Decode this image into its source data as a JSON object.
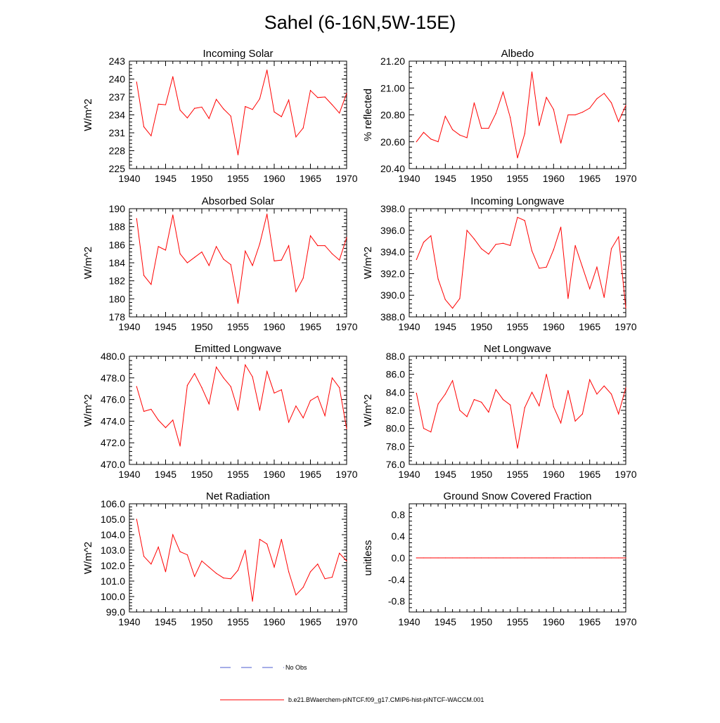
{
  "title": "Sahel (6-16N,5W-15E)",
  "chart_data": [
    {
      "type": "line",
      "title": "Incoming Solar",
      "ylabel": "W/m^2",
      "xlim": [
        1940,
        1970
      ],
      "ylim": [
        225,
        243
      ],
      "xticks": [
        1940,
        1945,
        1950,
        1955,
        1960,
        1965,
        1970
      ],
      "yticks": [
        225,
        228,
        231,
        234,
        237,
        240,
        243
      ],
      "ytick_labels": [
        "225",
        "228",
        "231",
        "234",
        "237",
        "240",
        "243"
      ],
      "grid": false,
      "x": [
        1941,
        1942,
        1943,
        1944,
        1945,
        1946,
        1947,
        1948,
        1949,
        1950,
        1951,
        1952,
        1953,
        1954,
        1955,
        1956,
        1957,
        1958,
        1959,
        1960,
        1961,
        1962,
        1963,
        1964,
        1965,
        1966,
        1967,
        1968,
        1969,
        1970
      ],
      "series": [
        {
          "values": [
            239.5,
            232.0,
            230.5,
            235.8,
            235.7,
            240.4,
            234.8,
            233.5,
            235.1,
            235.3,
            233.4,
            236.6,
            235.0,
            233.8,
            227.3,
            235.4,
            234.9,
            236.7,
            241.5,
            234.5,
            233.7,
            236.5,
            230.3,
            231.8,
            238.1,
            236.9,
            237.0,
            235.7,
            234.3,
            237.6
          ]
        }
      ]
    },
    {
      "type": "line",
      "title": "Albedo",
      "ylabel": "% reflected",
      "xlim": [
        1940,
        1970
      ],
      "ylim": [
        20.4,
        21.2
      ],
      "xticks": [
        1940,
        1945,
        1950,
        1955,
        1960,
        1965,
        1970
      ],
      "yticks": [
        20.4,
        20.6,
        20.8,
        21.0,
        21.2
      ],
      "ytick_labels": [
        "20.40",
        "20.60",
        "20.80",
        "21.00",
        "21.20"
      ],
      "grid": false,
      "x": [
        1941,
        1942,
        1943,
        1944,
        1945,
        1946,
        1947,
        1948,
        1949,
        1950,
        1951,
        1952,
        1953,
        1954,
        1955,
        1956,
        1957,
        1958,
        1959,
        1960,
        1961,
        1962,
        1963,
        1964,
        1965,
        1966,
        1967,
        1968,
        1969,
        1970
      ],
      "series": [
        {
          "values": [
            20.6,
            20.67,
            20.62,
            20.6,
            20.79,
            20.69,
            20.65,
            20.63,
            20.89,
            20.7,
            20.7,
            20.81,
            20.97,
            20.78,
            20.48,
            20.66,
            21.12,
            20.72,
            20.93,
            20.84,
            20.59,
            20.8,
            20.8,
            20.82,
            20.85,
            20.92,
            20.96,
            20.89,
            20.75,
            20.87
          ]
        }
      ]
    },
    {
      "type": "line",
      "title": "Absorbed Solar",
      "ylabel": "W/m^2",
      "xlim": [
        1940,
        1970
      ],
      "ylim": [
        178,
        190
      ],
      "xticks": [
        1940,
        1945,
        1950,
        1955,
        1960,
        1965,
        1970
      ],
      "yticks": [
        178,
        180,
        182,
        184,
        186,
        188,
        190
      ],
      "ytick_labels": [
        "178",
        "180",
        "182",
        "184",
        "186",
        "188",
        "190"
      ],
      "grid": false,
      "x": [
        1941,
        1942,
        1943,
        1944,
        1945,
        1946,
        1947,
        1948,
        1949,
        1950,
        1951,
        1952,
        1953,
        1954,
        1955,
        1956,
        1957,
        1958,
        1959,
        1960,
        1961,
        1962,
        1963,
        1964,
        1965,
        1966,
        1967,
        1968,
        1969,
        1970
      ],
      "series": [
        {
          "values": [
            188.9,
            182.6,
            181.6,
            185.8,
            185.4,
            189.3,
            185.0,
            184.0,
            184.6,
            185.2,
            183.7,
            185.8,
            184.4,
            183.8,
            179.5,
            185.3,
            183.7,
            186.1,
            189.4,
            184.2,
            184.3,
            185.9,
            180.8,
            182.3,
            187.0,
            185.9,
            185.9,
            185.0,
            184.3,
            186.8
          ]
        }
      ]
    },
    {
      "type": "line",
      "title": "Incoming Longwave",
      "ylabel": "W/m^2",
      "xlim": [
        1940,
        1970
      ],
      "ylim": [
        388,
        398
      ],
      "xticks": [
        1940,
        1945,
        1950,
        1955,
        1960,
        1965,
        1970
      ],
      "yticks": [
        388,
        390,
        392,
        394,
        396,
        398
      ],
      "ytick_labels": [
        "388.0",
        "390.0",
        "392.0",
        "394.0",
        "396.0",
        "398.0"
      ],
      "grid": false,
      "x": [
        1941,
        1942,
        1943,
        1944,
        1945,
        1946,
        1947,
        1948,
        1949,
        1950,
        1951,
        1952,
        1953,
        1954,
        1955,
        1956,
        1957,
        1958,
        1959,
        1960,
        1961,
        1962,
        1963,
        1964,
        1965,
        1966,
        1967,
        1968,
        1969,
        1970
      ],
      "series": [
        {
          "values": [
            393.3,
            394.9,
            395.5,
            391.5,
            389.6,
            388.8,
            389.7,
            396.0,
            395.2,
            394.3,
            393.8,
            394.7,
            394.8,
            394.6,
            397.2,
            396.9,
            394.1,
            392.5,
            392.6,
            394.2,
            396.3,
            389.7,
            394.6,
            392.6,
            390.6,
            392.6,
            389.8,
            394.3,
            395.4,
            388.8
          ]
        }
      ]
    },
    {
      "type": "line",
      "title": "Emitted Longwave",
      "ylabel": "W/m^2",
      "xlim": [
        1940,
        1970
      ],
      "ylim": [
        470,
        480
      ],
      "xticks": [
        1940,
        1945,
        1950,
        1955,
        1960,
        1965,
        1970
      ],
      "yticks": [
        470,
        472,
        474,
        476,
        478,
        480
      ],
      "ytick_labels": [
        "470.0",
        "472.0",
        "474.0",
        "476.0",
        "478.0",
        "480.0"
      ],
      "grid": false,
      "x": [
        1941,
        1942,
        1943,
        1944,
        1945,
        1946,
        1947,
        1948,
        1949,
        1950,
        1951,
        1952,
        1953,
        1954,
        1955,
        1956,
        1957,
        1958,
        1959,
        1960,
        1961,
        1962,
        1963,
        1964,
        1965,
        1966,
        1967,
        1968,
        1969,
        1970
      ],
      "series": [
        {
          "values": [
            477.2,
            474.9,
            475.1,
            474.1,
            473.4,
            474.1,
            471.7,
            477.3,
            478.4,
            477.1,
            475.6,
            479.0,
            478.0,
            477.2,
            475.0,
            479.2,
            478.1,
            475.0,
            478.6,
            476.6,
            476.9,
            473.9,
            475.4,
            474.3,
            475.9,
            476.3,
            474.5,
            478.0,
            477.1,
            473.3
          ]
        }
      ]
    },
    {
      "type": "line",
      "title": "Net Longwave",
      "ylabel": "W/m^2",
      "xlim": [
        1940,
        1970
      ],
      "ylim": [
        76,
        88
      ],
      "xticks": [
        1940,
        1945,
        1950,
        1955,
        1960,
        1965,
        1970
      ],
      "yticks": [
        76,
        78,
        80,
        82,
        84,
        86,
        88
      ],
      "ytick_labels": [
        "76.0",
        "78.0",
        "80.0",
        "82.0",
        "84.0",
        "86.0",
        "88.0"
      ],
      "grid": false,
      "x": [
        1941,
        1942,
        1943,
        1944,
        1945,
        1946,
        1947,
        1948,
        1949,
        1950,
        1951,
        1952,
        1953,
        1954,
        1955,
        1956,
        1957,
        1958,
        1959,
        1960,
        1961,
        1962,
        1963,
        1964,
        1965,
        1966,
        1967,
        1968,
        1969,
        1970
      ],
      "series": [
        {
          "values": [
            83.9,
            80.0,
            79.6,
            82.7,
            83.8,
            85.3,
            82.0,
            81.3,
            83.2,
            82.9,
            81.8,
            84.3,
            83.2,
            82.6,
            77.8,
            82.3,
            84.0,
            82.5,
            86.0,
            82.4,
            80.6,
            84.2,
            80.8,
            81.6,
            85.4,
            83.8,
            84.7,
            83.8,
            81.6,
            84.5
          ]
        }
      ]
    },
    {
      "type": "line",
      "title": "Net Radiation",
      "ylabel": "W/m^2",
      "xlim": [
        1940,
        1970
      ],
      "ylim": [
        99,
        106
      ],
      "xticks": [
        1940,
        1945,
        1950,
        1955,
        1960,
        1965,
        1970
      ],
      "yticks": [
        99,
        100,
        101,
        102,
        103,
        104,
        105,
        106
      ],
      "ytick_labels": [
        "99.0",
        "100.0",
        "101.0",
        "102.0",
        "103.0",
        "104.0",
        "105.0",
        "106.0"
      ],
      "grid": false,
      "x": [
        1941,
        1942,
        1943,
        1944,
        1945,
        1946,
        1947,
        1948,
        1949,
        1950,
        1951,
        1952,
        1953,
        1954,
        1955,
        1956,
        1957,
        1958,
        1959,
        1960,
        1961,
        1962,
        1963,
        1964,
        1965,
        1966,
        1967,
        1968,
        1969,
        1970
      ],
      "series": [
        {
          "values": [
            105.0,
            102.6,
            102.1,
            103.2,
            101.6,
            104.0,
            102.9,
            102.7,
            101.3,
            102.3,
            101.9,
            101.5,
            101.2,
            101.15,
            101.7,
            103.0,
            99.7,
            103.7,
            103.4,
            101.9,
            103.7,
            101.6,
            100.1,
            100.6,
            101.6,
            102.1,
            101.15,
            101.25,
            102.8,
            102.3
          ]
        }
      ]
    },
    {
      "type": "line",
      "title": "Ground Snow Covered Fraction",
      "ylabel": "unitless",
      "xlim": [
        1940,
        1970
      ],
      "ylim": [
        -1.0,
        1.0
      ],
      "xticks": [
        1940,
        1945,
        1950,
        1955,
        1960,
        1965,
        1970
      ],
      "yticks": [
        -0.8,
        -0.4,
        0.0,
        0.4,
        0.8
      ],
      "ytick_labels": [
        "-0.8",
        "-0.4",
        "0.0",
        "0.4",
        "0.8"
      ],
      "grid": false,
      "x": [
        1941,
        1942,
        1943,
        1944,
        1945,
        1946,
        1947,
        1948,
        1949,
        1950,
        1951,
        1952,
        1953,
        1954,
        1955,
        1956,
        1957,
        1958,
        1959,
        1960,
        1961,
        1962,
        1963,
        1964,
        1965,
        1966,
        1967,
        1968,
        1969,
        1970
      ],
      "series": [
        {
          "values": [
            0,
            0,
            0,
            0,
            0,
            0,
            0,
            0,
            0,
            0,
            0,
            0,
            0,
            0,
            0,
            0,
            0,
            0,
            0,
            0,
            0,
            0,
            0,
            0,
            0,
            0,
            0,
            0,
            0,
            0
          ]
        }
      ]
    }
  ],
  "legend": {
    "placement": "bottom-center",
    "entries": [
      {
        "label": "No Obs",
        "color": "#4b5bd1",
        "style": "dashed"
      },
      {
        "label": "b.e21.BWaerchem-piNTCF.f09_g17.CMIP6-hist-piNTCF-WACCM.001",
        "color": "#ff0000",
        "style": "solid"
      }
    ]
  },
  "colors": {
    "series": "#ff0000",
    "axes": "#000000"
  }
}
